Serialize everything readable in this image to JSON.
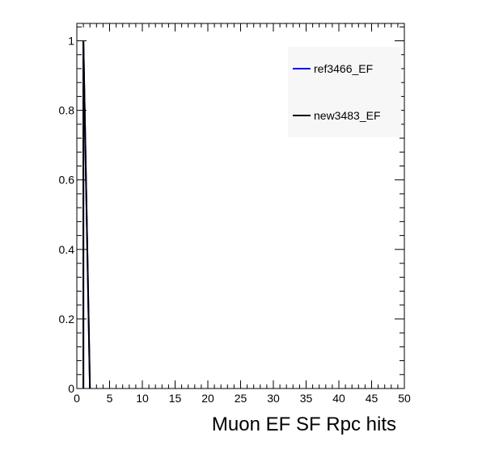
{
  "chart_data": {
    "type": "line",
    "title": "",
    "xlabel": "Muon EF SF Rpc hits",
    "ylabel": "",
    "xlim": [
      0,
      50
    ],
    "ylim": [
      0,
      1.05
    ],
    "x_ticks": [
      0,
      5,
      10,
      15,
      20,
      25,
      30,
      35,
      40,
      45,
      50
    ],
    "x_tick_labels": [
      "0",
      "5",
      "10",
      "15",
      "20",
      "25",
      "30",
      "35",
      "40",
      "45",
      "50"
    ],
    "y_ticks": [
      0,
      0.2,
      0.4,
      0.6,
      0.8,
      1
    ],
    "y_tick_labels": [
      "0",
      "0.2",
      "0.4",
      "0.6",
      "0.8",
      "1"
    ],
    "grid": false,
    "legend_position": "top-right",
    "series": [
      {
        "name": "ref3466_EF",
        "color": "#0000ff",
        "x": [
          1,
          2
        ],
        "values": [
          1,
          0
        ]
      },
      {
        "name": "new3483_EF",
        "color": "#000000",
        "x": [
          1,
          2
        ],
        "values": [
          1,
          0
        ]
      }
    ]
  }
}
